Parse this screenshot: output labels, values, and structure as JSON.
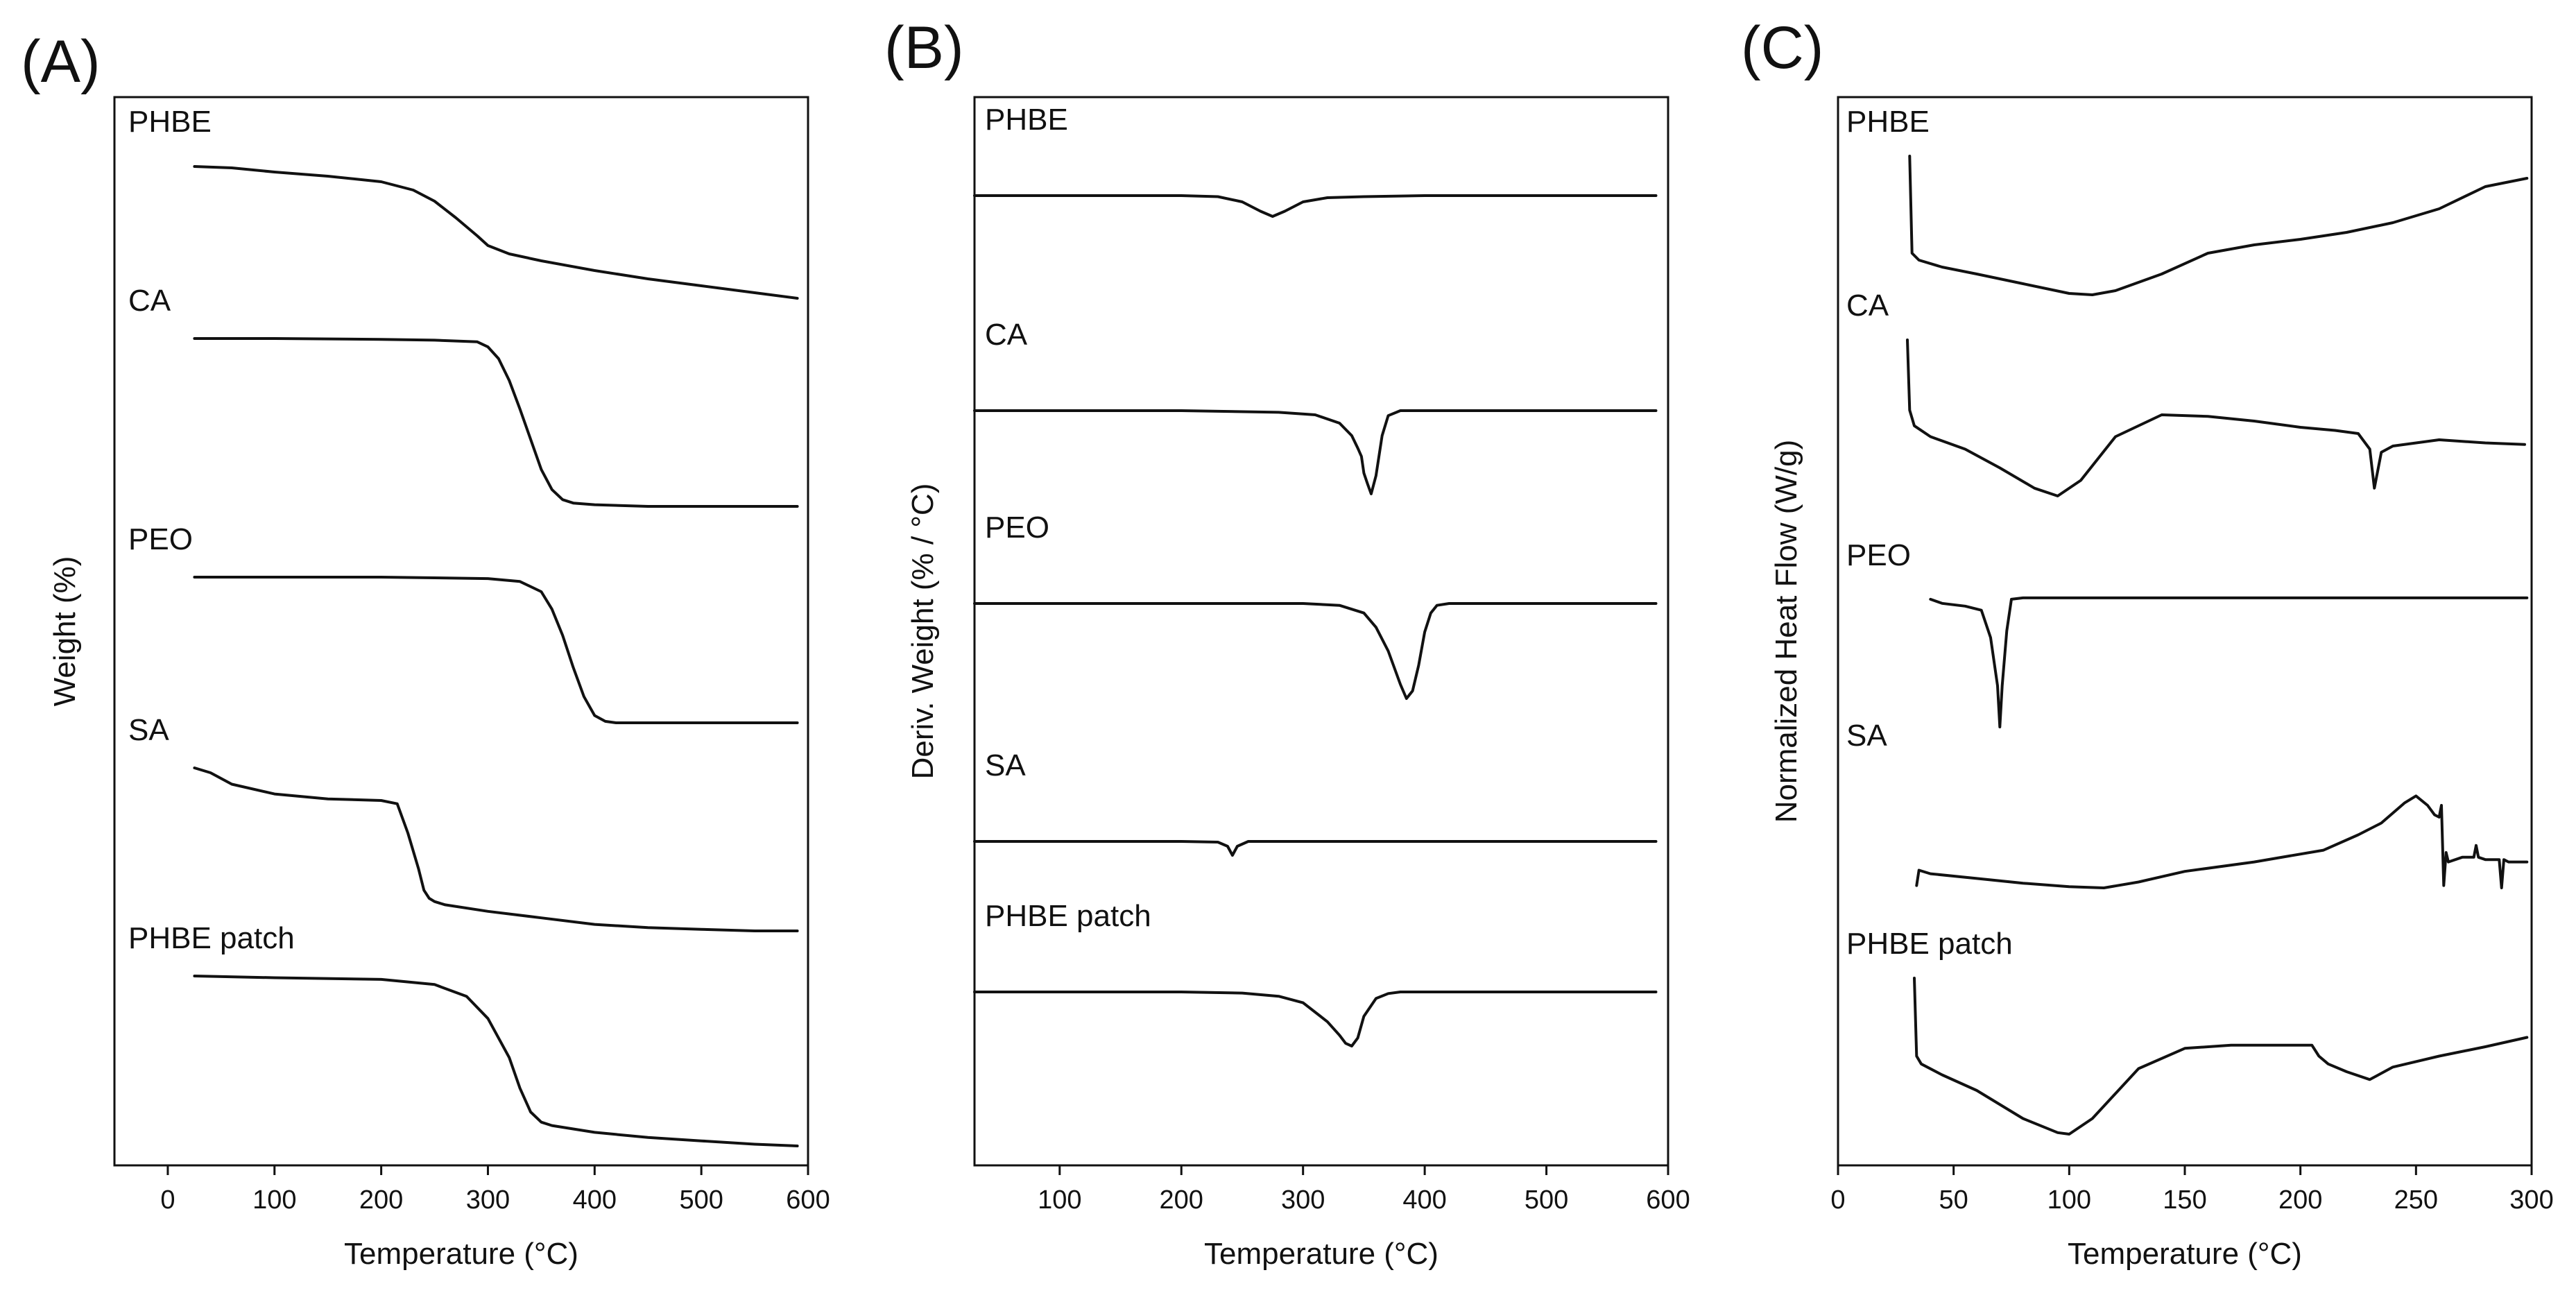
{
  "chart_data": [
    {
      "panel_label": "(A)",
      "type": "line",
      "title": "",
      "xlabel": "Temperature (°C)",
      "ylabel": "Weight (%)",
      "xlim": [
        -50,
        600
      ],
      "xticks": [
        0,
        100,
        200,
        300,
        400,
        500,
        600
      ],
      "xtick_labels": [
        "0",
        "100",
        "200",
        "300",
        "400",
        "500",
        "600"
      ],
      "y_units": "stacked, offset curves (no y tick labels)",
      "series": [
        {
          "name": "PHBE",
          "x": [
            25,
            60,
            100,
            150,
            200,
            230,
            250,
            270,
            290,
            300,
            320,
            350,
            400,
            450,
            500,
            550,
            590
          ],
          "y": [
            0.05,
            0.06,
            0.09,
            0.12,
            0.16,
            0.22,
            0.3,
            0.42,
            0.55,
            0.62,
            0.68,
            0.73,
            0.8,
            0.86,
            0.91,
            0.96,
            1.0
          ]
        },
        {
          "name": "CA",
          "x": [
            25,
            100,
            200,
            250,
            290,
            300,
            310,
            320,
            330,
            340,
            350,
            360,
            370,
            380,
            400,
            450,
            500,
            550,
            590
          ],
          "y": [
            0.0,
            0.0,
            0.005,
            0.01,
            0.02,
            0.05,
            0.12,
            0.25,
            0.42,
            0.6,
            0.78,
            0.9,
            0.96,
            0.98,
            0.99,
            1.0,
            1.0,
            1.0,
            1.0
          ]
        },
        {
          "name": "PEO",
          "x": [
            25,
            100,
            200,
            300,
            330,
            350,
            360,
            370,
            380,
            390,
            400,
            410,
            420,
            450,
            500,
            550,
            590
          ],
          "y": [
            0.0,
            0.0,
            0.0,
            0.01,
            0.03,
            0.1,
            0.22,
            0.4,
            0.62,
            0.82,
            0.95,
            0.99,
            1.0,
            1.0,
            1.0,
            1.0,
            1.0
          ]
        },
        {
          "name": "SA",
          "x": [
            25,
            40,
            60,
            100,
            150,
            200,
            215,
            225,
            235,
            240,
            245,
            250,
            260,
            300,
            350,
            400,
            450,
            500,
            550,
            590
          ],
          "y": [
            0.0,
            0.03,
            0.1,
            0.16,
            0.19,
            0.2,
            0.22,
            0.4,
            0.62,
            0.75,
            0.8,
            0.82,
            0.84,
            0.88,
            0.92,
            0.96,
            0.98,
            0.99,
            1.0,
            1.0
          ]
        },
        {
          "name": "PHBE patch",
          "x": [
            25,
            100,
            200,
            250,
            280,
            300,
            320,
            330,
            340,
            350,
            360,
            380,
            400,
            450,
            500,
            550,
            590
          ],
          "y": [
            0.0,
            0.01,
            0.02,
            0.05,
            0.12,
            0.25,
            0.48,
            0.66,
            0.8,
            0.86,
            0.88,
            0.9,
            0.92,
            0.95,
            0.97,
            0.99,
            1.0
          ]
        }
      ]
    },
    {
      "panel_label": "(B)",
      "type": "line",
      "title": "",
      "xlabel": "Temperature (°C)",
      "ylabel": "Deriv. Weight (% / °C)",
      "xlim": [
        30,
        600
      ],
      "xticks": [
        100,
        200,
        300,
        400,
        500,
        600
      ],
      "xtick_labels": [
        "100",
        "200",
        "300",
        "400",
        "500",
        "600"
      ],
      "y_units": "stacked, offset curves (no y tick labels)",
      "series": [
        {
          "name": "PHBE",
          "x": [
            30,
            60,
            100,
            150,
            200,
            230,
            250,
            265,
            275,
            285,
            300,
            320,
            350,
            400,
            500,
            590
          ],
          "y": [
            0.0,
            0.0,
            0.0,
            0.0,
            0.0,
            0.05,
            0.3,
            0.75,
            1.0,
            0.75,
            0.3,
            0.1,
            0.05,
            0.0,
            0.0,
            0.0
          ]
        },
        {
          "name": "CA",
          "x": [
            30,
            100,
            200,
            280,
            310,
            330,
            340,
            345,
            348,
            350,
            353,
            356,
            360,
            365,
            370,
            380,
            400,
            450,
            500,
            590
          ],
          "y": [
            0.0,
            0.0,
            0.0,
            0.02,
            0.05,
            0.15,
            0.3,
            0.45,
            0.55,
            0.75,
            0.88,
            1.0,
            0.78,
            0.3,
            0.06,
            0.0,
            0.0,
            0.0,
            0.0,
            0.0
          ]
        },
        {
          "name": "PEO",
          "x": [
            30,
            100,
            200,
            300,
            330,
            350,
            360,
            370,
            380,
            385,
            390,
            395,
            400,
            405,
            410,
            420,
            450,
            500,
            590
          ],
          "y": [
            0.0,
            0.0,
            0.0,
            0.0,
            0.02,
            0.1,
            0.25,
            0.5,
            0.85,
            1.0,
            0.92,
            0.65,
            0.3,
            0.1,
            0.02,
            0.0,
            0.0,
            0.0,
            0.0
          ]
        },
        {
          "name": "SA",
          "x": [
            30,
            100,
            200,
            230,
            238,
            242,
            246,
            255,
            300,
            400,
            500,
            590
          ],
          "y": [
            0.0,
            0.0,
            0.0,
            0.05,
            0.35,
            1.0,
            0.35,
            0.0,
            0.0,
            0.0,
            0.0,
            0.0
          ]
        },
        {
          "name": "PHBE patch",
          "x": [
            30,
            100,
            200,
            250,
            280,
            300,
            320,
            330,
            335,
            340,
            345,
            350,
            360,
            370,
            380,
            400,
            500,
            590
          ],
          "y": [
            0.0,
            0.0,
            0.0,
            0.02,
            0.08,
            0.2,
            0.55,
            0.8,
            0.95,
            1.0,
            0.85,
            0.45,
            0.12,
            0.03,
            0.0,
            0.0,
            0.0,
            0.0
          ]
        }
      ]
    },
    {
      "panel_label": "(C)",
      "type": "line",
      "title": "",
      "xlabel": "Temperature (°C)",
      "ylabel": "Normalized Heat Flow (W/g)",
      "xlim": [
        0,
        300
      ],
      "xticks": [
        0,
        50,
        100,
        150,
        200,
        250,
        300
      ],
      "xtick_labels": [
        "0",
        "50",
        "100",
        "150",
        "200",
        "250",
        "300"
      ],
      "y_units": "stacked, offset curves (no y tick labels)",
      "series": [
        {
          "name": "PHBE",
          "x": [
            31,
            32,
            35,
            45,
            60,
            80,
            100,
            110,
            120,
            140,
            160,
            180,
            200,
            220,
            240,
            260,
            280,
            298
          ],
          "y": [
            1.0,
            0.3,
            0.25,
            0.2,
            0.15,
            0.08,
            0.01,
            0.0,
            0.03,
            0.15,
            0.3,
            0.36,
            0.4,
            0.45,
            0.52,
            0.62,
            0.78,
            0.84
          ]
        },
        {
          "name": "CA",
          "x": [
            30,
            31,
            33,
            40,
            55,
            70,
            85,
            95,
            105,
            120,
            140,
            160,
            180,
            200,
            215,
            225,
            230,
            232,
            235,
            240,
            260,
            280,
            297
          ],
          "y": [
            1.0,
            0.55,
            0.45,
            0.38,
            0.3,
            0.18,
            0.05,
            0.0,
            0.1,
            0.38,
            0.52,
            0.51,
            0.48,
            0.44,
            0.42,
            0.4,
            0.3,
            0.05,
            0.28,
            0.32,
            0.36,
            0.34,
            0.33
          ]
        },
        {
          "name": "PEO",
          "x": [
            40,
            45,
            55,
            62,
            66,
            69,
            70,
            71,
            73,
            75,
            80,
            100,
            150,
            200,
            250,
            298
          ],
          "y": [
            0.93,
            0.9,
            0.88,
            0.85,
            0.65,
            0.3,
            0.0,
            0.3,
            0.7,
            0.93,
            0.94,
            0.94,
            0.94,
            0.94,
            0.94,
            0.94
          ]
        },
        {
          "name": "SA",
          "x": [
            34,
            35,
            40,
            60,
            80,
            100,
            115,
            130,
            150,
            180,
            210,
            225,
            235,
            245,
            250,
            255,
            258,
            260,
            261,
            262,
            263,
            264,
            270,
            275,
            276,
            277,
            280,
            286,
            287,
            288,
            290,
            298
          ],
          "y": [
            0.02,
            0.15,
            0.12,
            0.08,
            0.04,
            0.01,
            0.0,
            0.05,
            0.14,
            0.22,
            0.32,
            0.45,
            0.55,
            0.72,
            0.78,
            0.7,
            0.62,
            0.6,
            0.7,
            0.02,
            0.3,
            0.22,
            0.26,
            0.26,
            0.36,
            0.26,
            0.24,
            0.24,
            0.0,
            0.24,
            0.22,
            0.22
          ]
        },
        {
          "name": "PHBE patch",
          "x": [
            33,
            34,
            36,
            45,
            60,
            80,
            95,
            100,
            110,
            130,
            150,
            170,
            190,
            205,
            208,
            212,
            220,
            230,
            240,
            260,
            280,
            298
          ],
          "y": [
            1.0,
            0.5,
            0.45,
            0.38,
            0.28,
            0.1,
            0.01,
            0.0,
            0.1,
            0.42,
            0.55,
            0.57,
            0.57,
            0.57,
            0.5,
            0.45,
            0.4,
            0.35,
            0.43,
            0.5,
            0.56,
            0.62
          ]
        }
      ]
    }
  ]
}
